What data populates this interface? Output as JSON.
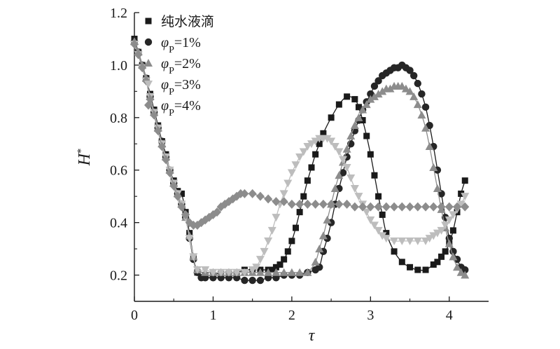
{
  "chart_data": {
    "type": "line",
    "title": "",
    "xlabel": "τ",
    "ylabel": "H*",
    "xlim": [
      0,
      4.5
    ],
    "ylim": [
      0.1,
      1.2
    ],
    "xticks": [
      "0",
      "1",
      "2",
      "3",
      "4"
    ],
    "yticks": [
      "0.2",
      "0.4",
      "0.6",
      "0.8",
      "1.0",
      "1.2"
    ],
    "grid": false,
    "legend_position": "top-left",
    "series": [
      {
        "name": "纯水液滴",
        "marker": "square",
        "color": "#1a1a1a",
        "line_color": "#1a1a1a",
        "x": [
          0.0,
          0.05,
          0.1,
          0.15,
          0.2,
          0.25,
          0.3,
          0.35,
          0.4,
          0.45,
          0.5,
          0.55,
          0.6,
          0.65,
          0.7,
          0.75,
          0.8,
          0.9,
          1.0,
          1.1,
          1.2,
          1.3,
          1.4,
          1.5,
          1.6,
          1.7,
          1.75,
          1.8,
          1.85,
          1.9,
          1.95,
          2.0,
          2.05,
          2.1,
          2.15,
          2.2,
          2.25,
          2.3,
          2.35,
          2.4,
          2.5,
          2.6,
          2.7,
          2.8,
          2.85,
          2.9,
          2.95,
          3.0,
          3.05,
          3.1,
          3.15,
          3.2,
          3.3,
          3.4,
          3.5,
          3.6,
          3.7,
          3.8,
          3.85,
          3.9,
          3.95,
          4.0,
          4.05,
          4.1,
          4.15,
          4.2
        ],
        "y": [
          1.1,
          1.05,
          1.0,
          0.95,
          0.89,
          0.83,
          0.77,
          0.71,
          0.66,
          0.6,
          0.56,
          0.52,
          0.51,
          0.44,
          0.36,
          0.27,
          0.21,
          0.2,
          0.2,
          0.21,
          0.21,
          0.21,
          0.22,
          0.22,
          0.22,
          0.22,
          0.22,
          0.23,
          0.24,
          0.26,
          0.29,
          0.33,
          0.38,
          0.44,
          0.5,
          0.56,
          0.61,
          0.66,
          0.7,
          0.74,
          0.8,
          0.85,
          0.88,
          0.87,
          0.84,
          0.79,
          0.73,
          0.66,
          0.58,
          0.5,
          0.43,
          0.36,
          0.29,
          0.25,
          0.23,
          0.22,
          0.22,
          0.24,
          0.25,
          0.27,
          0.29,
          0.32,
          0.37,
          0.44,
          0.51,
          0.56
        ]
      },
      {
        "name": "φP=1%",
        "marker": "circle",
        "color": "#262626",
        "line_color": "#1a1a1a",
        "x": [
          0.0,
          0.05,
          0.1,
          0.15,
          0.2,
          0.25,
          0.3,
          0.35,
          0.4,
          0.45,
          0.5,
          0.55,
          0.6,
          0.65,
          0.7,
          0.75,
          0.8,
          0.85,
          0.9,
          1.0,
          1.1,
          1.2,
          1.3,
          1.4,
          1.5,
          1.6,
          1.7,
          1.8,
          1.9,
          2.0,
          2.1,
          2.2,
          2.3,
          2.35,
          2.4,
          2.45,
          2.5,
          2.55,
          2.6,
          2.65,
          2.7,
          2.75,
          2.8,
          2.85,
          2.9,
          2.95,
          3.0,
          3.05,
          3.1,
          3.15,
          3.2,
          3.25,
          3.3,
          3.35,
          3.4,
          3.45,
          3.5,
          3.55,
          3.6,
          3.65,
          3.7,
          3.75,
          3.8,
          3.85,
          3.9,
          3.95,
          4.0,
          4.05,
          4.1,
          4.15,
          4.2
        ],
        "y": [
          1.09,
          1.05,
          1.0,
          0.95,
          0.88,
          0.82,
          0.76,
          0.71,
          0.65,
          0.6,
          0.55,
          0.51,
          0.47,
          0.42,
          0.34,
          0.26,
          0.21,
          0.19,
          0.19,
          0.19,
          0.19,
          0.19,
          0.19,
          0.18,
          0.18,
          0.18,
          0.19,
          0.19,
          0.2,
          0.2,
          0.2,
          0.21,
          0.22,
          0.23,
          0.29,
          0.34,
          0.4,
          0.47,
          0.53,
          0.59,
          0.65,
          0.7,
          0.75,
          0.79,
          0.83,
          0.86,
          0.89,
          0.92,
          0.94,
          0.96,
          0.97,
          0.98,
          0.99,
          0.99,
          1.0,
          0.99,
          0.98,
          0.96,
          0.93,
          0.89,
          0.84,
          0.77,
          0.69,
          0.6,
          0.51,
          0.42,
          0.34,
          0.29,
          0.26,
          0.23,
          0.22
        ]
      },
      {
        "name": "φP=2%",
        "marker": "triangle-up",
        "color": "#8c8c8c",
        "line_color": "#8c8c8c",
        "x": [
          0.0,
          0.05,
          0.1,
          0.15,
          0.2,
          0.25,
          0.3,
          0.35,
          0.4,
          0.45,
          0.5,
          0.55,
          0.6,
          0.65,
          0.7,
          0.75,
          0.8,
          0.9,
          1.0,
          1.1,
          1.2,
          1.3,
          1.4,
          1.5,
          1.6,
          1.7,
          1.8,
          1.9,
          2.0,
          2.1,
          2.2,
          2.3,
          2.35,
          2.4,
          2.45,
          2.5,
          2.55,
          2.6,
          2.65,
          2.7,
          2.75,
          2.8,
          2.85,
          2.9,
          2.95,
          3.0,
          3.05,
          3.1,
          3.15,
          3.2,
          3.25,
          3.3,
          3.35,
          3.4,
          3.45,
          3.5,
          3.55,
          3.6,
          3.65,
          3.7,
          3.75,
          3.8,
          3.85,
          3.9,
          3.95,
          4.0,
          4.05,
          4.1,
          4.15,
          4.2
        ],
        "y": [
          1.09,
          1.05,
          1.0,
          0.95,
          0.88,
          0.82,
          0.76,
          0.7,
          0.65,
          0.6,
          0.55,
          0.51,
          0.47,
          0.42,
          0.35,
          0.27,
          0.22,
          0.21,
          0.21,
          0.21,
          0.21,
          0.21,
          0.21,
          0.21,
          0.21,
          0.21,
          0.21,
          0.21,
          0.21,
          0.21,
          0.21,
          0.25,
          0.3,
          0.35,
          0.41,
          0.47,
          0.53,
          0.58,
          0.63,
          0.68,
          0.73,
          0.77,
          0.8,
          0.83,
          0.85,
          0.87,
          0.88,
          0.89,
          0.9,
          0.91,
          0.91,
          0.92,
          0.92,
          0.92,
          0.91,
          0.9,
          0.88,
          0.85,
          0.81,
          0.76,
          0.69,
          0.61,
          0.53,
          0.45,
          0.38,
          0.32,
          0.27,
          0.23,
          0.21,
          0.2
        ]
      },
      {
        "name": "φP=3%",
        "marker": "triangle-down",
        "color": "#bdbdbd",
        "line_color": "#bdbdbd",
        "x": [
          0.0,
          0.05,
          0.1,
          0.15,
          0.2,
          0.25,
          0.3,
          0.35,
          0.4,
          0.45,
          0.5,
          0.55,
          0.6,
          0.65,
          0.7,
          0.75,
          0.8,
          0.9,
          1.0,
          1.1,
          1.2,
          1.3,
          1.4,
          1.5,
          1.55,
          1.6,
          1.65,
          1.7,
          1.75,
          1.8,
          1.85,
          1.9,
          1.95,
          2.0,
          2.05,
          2.1,
          2.15,
          2.2,
          2.25,
          2.3,
          2.35,
          2.4,
          2.45,
          2.5,
          2.55,
          2.6,
          2.65,
          2.7,
          2.75,
          2.8,
          2.85,
          2.9,
          2.95,
          3.0,
          3.05,
          3.1,
          3.15,
          3.2,
          3.3,
          3.4,
          3.5,
          3.6,
          3.7,
          3.75,
          3.8,
          3.85,
          3.9,
          3.95,
          4.0,
          4.05,
          4.1,
          4.15,
          4.2
        ],
        "y": [
          1.08,
          1.04,
          0.99,
          0.94,
          0.88,
          0.82,
          0.76,
          0.7,
          0.65,
          0.6,
          0.55,
          0.51,
          0.47,
          0.42,
          0.34,
          0.27,
          0.22,
          0.22,
          0.21,
          0.21,
          0.21,
          0.21,
          0.21,
          0.22,
          0.23,
          0.26,
          0.29,
          0.33,
          0.37,
          0.42,
          0.47,
          0.51,
          0.55,
          0.59,
          0.62,
          0.65,
          0.67,
          0.69,
          0.7,
          0.71,
          0.72,
          0.72,
          0.72,
          0.71,
          0.69,
          0.67,
          0.64,
          0.61,
          0.57,
          0.53,
          0.5,
          0.47,
          0.44,
          0.41,
          0.39,
          0.37,
          0.35,
          0.34,
          0.33,
          0.33,
          0.33,
          0.33,
          0.33,
          0.34,
          0.35,
          0.36,
          0.37,
          0.39,
          0.41,
          0.43,
          0.45,
          0.47,
          0.5
        ]
      },
      {
        "name": "φP=4%",
        "marker": "diamond",
        "color": "#8c8c8c",
        "line_color": "#8c8c8c",
        "x": [
          0.0,
          0.05,
          0.1,
          0.15,
          0.2,
          0.25,
          0.3,
          0.35,
          0.4,
          0.45,
          0.5,
          0.55,
          0.6,
          0.65,
          0.7,
          0.75,
          0.8,
          0.85,
          0.9,
          0.95,
          1.0,
          1.05,
          1.1,
          1.15,
          1.2,
          1.25,
          1.3,
          1.35,
          1.4,
          1.5,
          1.6,
          1.7,
          1.8,
          1.9,
          2.0,
          2.1,
          2.2,
          2.3,
          2.4,
          2.5,
          2.6,
          2.7,
          2.8,
          2.9,
          3.0,
          3.1,
          3.2,
          3.3,
          3.4,
          3.5,
          3.6,
          3.7,
          3.8,
          3.9,
          4.0,
          4.1,
          4.2
        ],
        "y": [
          1.08,
          1.04,
          0.99,
          0.94,
          0.87,
          0.81,
          0.75,
          0.69,
          0.64,
          0.59,
          0.54,
          0.5,
          0.46,
          0.43,
          0.4,
          0.39,
          0.39,
          0.4,
          0.41,
          0.42,
          0.43,
          0.44,
          0.46,
          0.47,
          0.48,
          0.49,
          0.5,
          0.51,
          0.51,
          0.51,
          0.5,
          0.49,
          0.48,
          0.48,
          0.47,
          0.47,
          0.47,
          0.47,
          0.47,
          0.47,
          0.47,
          0.47,
          0.46,
          0.46,
          0.46,
          0.46,
          0.46,
          0.46,
          0.46,
          0.46,
          0.46,
          0.46,
          0.46,
          0.46,
          0.46,
          0.46,
          0.46
        ]
      }
    ]
  }
}
